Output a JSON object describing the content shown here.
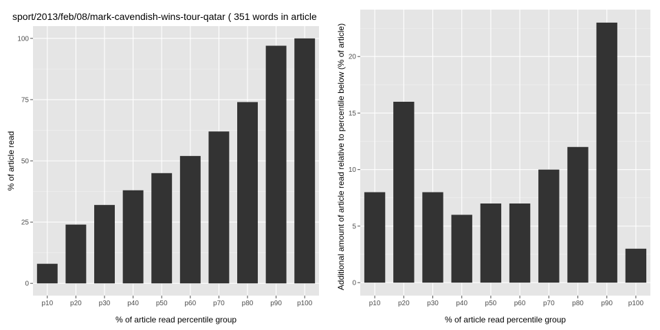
{
  "chart_data": [
    {
      "type": "bar",
      "title": "sport/2013/feb/08/mark-cavendish-wins-tour-qatar ( 351 words in article",
      "xlabel": "% of article read percentile group",
      "ylabel": "% of article read",
      "categories": [
        "p10",
        "p20",
        "p30",
        "p40",
        "p50",
        "p60",
        "p70",
        "p80",
        "p90",
        "p100"
      ],
      "values": [
        8,
        24,
        32,
        38,
        45,
        52,
        62,
        74,
        97,
        100
      ],
      "yticks": [
        "0",
        "25",
        "50",
        "75",
        "100"
      ],
      "ytick_values": [
        0,
        25,
        50,
        75,
        100
      ],
      "ylim": [
        -5,
        105
      ],
      "bar_color": "#333333",
      "panel_color": "#e5e5e5",
      "grid": true
    },
    {
      "type": "bar",
      "title": "",
      "xlabel": "% of article read percentile group",
      "ylabel": "Additional amount of article read relative to percentile below (% of article)",
      "categories": [
        "p10",
        "p20",
        "p30",
        "p40",
        "p50",
        "p60",
        "p70",
        "p80",
        "p90",
        "p100"
      ],
      "values": [
        8,
        16,
        8,
        6,
        7,
        7,
        10,
        12,
        23,
        3
      ],
      "yticks": [
        "0",
        "5",
        "10",
        "15",
        "20"
      ],
      "ytick_values": [
        0,
        5,
        10,
        15,
        20
      ],
      "ylim": [
        -1.15,
        24.15
      ],
      "bar_color": "#333333",
      "panel_color": "#e5e5e5",
      "grid": true
    }
  ]
}
